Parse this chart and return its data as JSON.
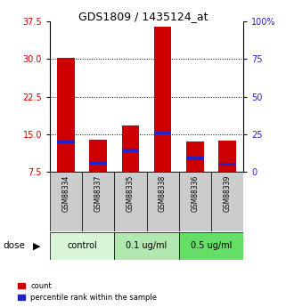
{
  "title": "GDS1809 / 1435124_at",
  "samples": [
    "GSM88334",
    "GSM88337",
    "GSM88335",
    "GSM88338",
    "GSM88336",
    "GSM88339"
  ],
  "groups": [
    {
      "label": "control",
      "color": "#d8f5d8",
      "indices": [
        0,
        1
      ]
    },
    {
      "label": "0.1 ug/ml",
      "color": "#b0e8b0",
      "indices": [
        2,
        3
      ]
    },
    {
      "label": "0.5 ug/ml",
      "color": "#66dd66",
      "indices": [
        4,
        5
      ]
    }
  ],
  "count_values": [
    30.2,
    13.9,
    16.8,
    36.5,
    13.6,
    13.8
  ],
  "count_base": 7.5,
  "percentile_values": [
    13.5,
    9.2,
    11.8,
    15.2,
    10.2,
    9.0
  ],
  "left_ylim": [
    7.5,
    37.5
  ],
  "right_ylim": [
    0,
    100
  ],
  "left_yticks": [
    7.5,
    15.0,
    22.5,
    30.0,
    37.5
  ],
  "right_yticks": [
    0,
    25,
    50,
    75,
    100
  ],
  "grid_lines": [
    15.0,
    22.5,
    30.0
  ],
  "bar_color_red": "#cc0000",
  "bar_color_blue": "#2222cc",
  "bar_width": 0.55,
  "blue_bar_height": 0.55,
  "bg_color": "#ffffff",
  "left_axis_color": "#cc0000",
  "right_axis_color": "#2222cc",
  "sample_box_color": "#cccccc",
  "dose_label": "dose"
}
